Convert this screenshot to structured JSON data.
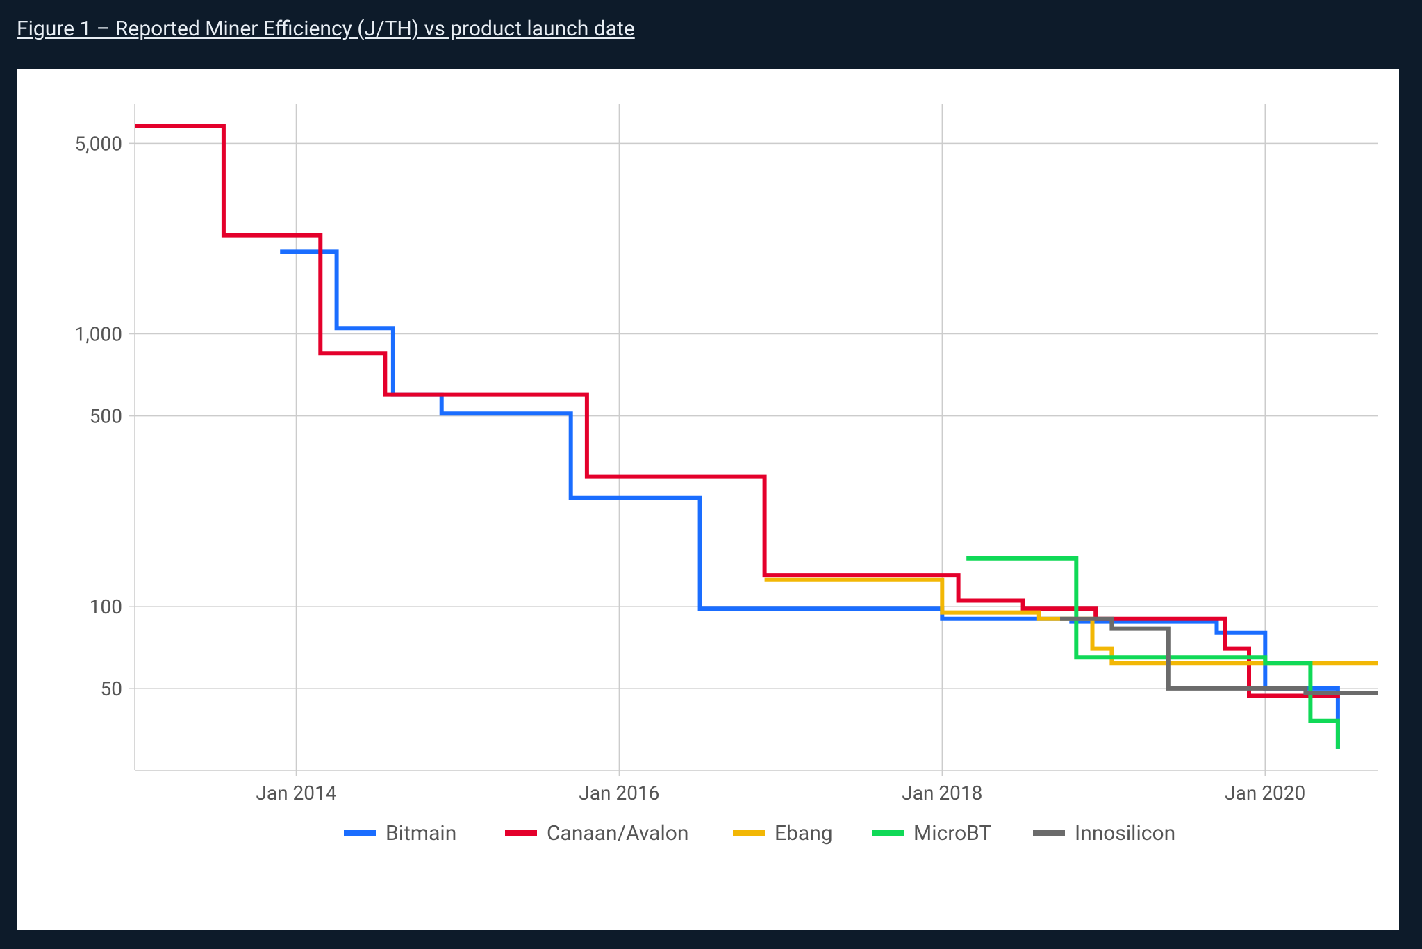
{
  "figure": {
    "title": "Figure 1 – Reported Miner Efficiency (J/TH) vs product launch date"
  },
  "chart": {
    "type": "line-step",
    "scale_y": "log",
    "background_color": "#ffffff",
    "page_background": "#0d1b2a",
    "grid_color": "#cccccc",
    "line_width": 6,
    "axis_fontsize": 28,
    "legend_fontsize": 30,
    "legend_position": "bottom",
    "x": {
      "min": 2013.0,
      "max": 2020.7,
      "ticks": [
        2014.0,
        2016.0,
        2018.0,
        2020.0
      ],
      "tick_labels": [
        "Jan 2014",
        "Jan 2016",
        "Jan 2018",
        "Jan 2020"
      ]
    },
    "y": {
      "min": 25,
      "max": 7000,
      "ticks": [
        50,
        100,
        500,
        1000,
        5000
      ],
      "tick_labels": [
        "50",
        "100",
        "500",
        "1,000",
        "5,000"
      ]
    },
    "series": [
      {
        "name": "Bitmain",
        "color": "#1a6dff",
        "points": [
          [
            2013.9,
            2000
          ],
          [
            2014.25,
            2000
          ],
          [
            2014.25,
            1050
          ],
          [
            2014.6,
            1050
          ],
          [
            2014.6,
            600
          ],
          [
            2014.9,
            600
          ],
          [
            2014.9,
            510
          ],
          [
            2015.7,
            510
          ],
          [
            2015.7,
            250
          ],
          [
            2016.5,
            250
          ],
          [
            2016.5,
            98
          ],
          [
            2018.0,
            98
          ],
          [
            2018.0,
            90
          ],
          [
            2018.8,
            90
          ],
          [
            2018.8,
            88
          ],
          [
            2019.7,
            88
          ],
          [
            2019.7,
            80
          ],
          [
            2020.0,
            80
          ],
          [
            2020.0,
            50
          ],
          [
            2020.45,
            50
          ],
          [
            2020.45,
            30
          ]
        ]
      },
      {
        "name": "Canaan/Avalon",
        "color": "#e4002b",
        "points": [
          [
            2013.0,
            5800
          ],
          [
            2013.55,
            5800
          ],
          [
            2013.55,
            2300
          ],
          [
            2014.15,
            2300
          ],
          [
            2014.15,
            850
          ],
          [
            2014.55,
            850
          ],
          [
            2014.55,
            600
          ],
          [
            2015.8,
            600
          ],
          [
            2015.8,
            300
          ],
          [
            2016.9,
            300
          ],
          [
            2016.9,
            130
          ],
          [
            2018.1,
            130
          ],
          [
            2018.1,
            105
          ],
          [
            2018.5,
            105
          ],
          [
            2018.5,
            98
          ],
          [
            2018.95,
            98
          ],
          [
            2018.95,
            90
          ],
          [
            2019.75,
            90
          ],
          [
            2019.75,
            70
          ],
          [
            2019.9,
            70
          ],
          [
            2019.9,
            47
          ],
          [
            2020.45,
            47
          ],
          [
            2020.45,
            46
          ]
        ]
      },
      {
        "name": "Ebang",
        "color": "#f2b705",
        "points": [
          [
            2016.9,
            125
          ],
          [
            2018.0,
            125
          ],
          [
            2018.0,
            95
          ],
          [
            2018.6,
            95
          ],
          [
            2018.6,
            90
          ],
          [
            2018.93,
            90
          ],
          [
            2018.93,
            70
          ],
          [
            2019.05,
            70
          ],
          [
            2019.05,
            62
          ],
          [
            2020.7,
            62
          ]
        ]
      },
      {
        "name": "MicroBT",
        "color": "#10d957",
        "points": [
          [
            2018.15,
            150
          ],
          [
            2018.83,
            150
          ],
          [
            2018.83,
            65
          ],
          [
            2020.0,
            65
          ],
          [
            2020.0,
            62
          ],
          [
            2020.28,
            62
          ],
          [
            2020.28,
            38
          ],
          [
            2020.45,
            38
          ],
          [
            2020.45,
            30
          ]
        ]
      },
      {
        "name": "Innosilicon",
        "color": "#6b6b6b",
        "points": [
          [
            2018.73,
            90
          ],
          [
            2019.05,
            90
          ],
          [
            2019.05,
            83
          ],
          [
            2019.4,
            83
          ],
          [
            2019.4,
            50
          ],
          [
            2020.25,
            50
          ],
          [
            2020.25,
            48
          ],
          [
            2020.7,
            48
          ]
        ]
      }
    ]
  }
}
